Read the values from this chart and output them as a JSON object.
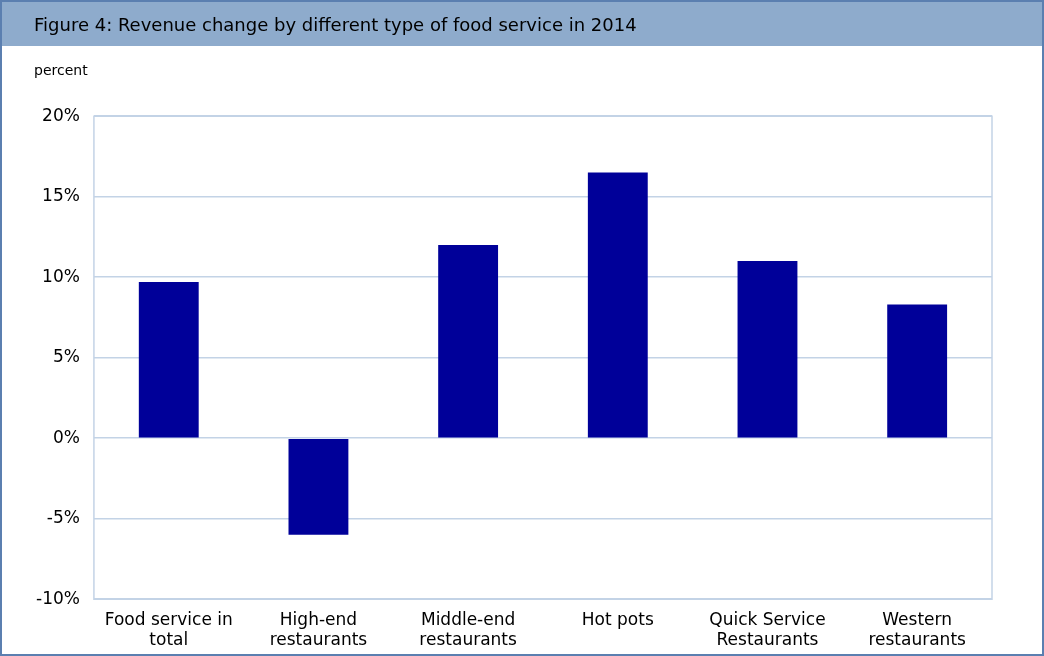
{
  "chart_data": {
    "type": "bar",
    "title": "Figure 4: Revenue change by different type of food service in 2014",
    "ylabel": "percent",
    "categories": [
      "Food service in total",
      "High-end restaurants",
      "Middle-end restaurants",
      "Hot pots",
      "Quick Service Restaurants",
      "Western restaurants"
    ],
    "values": [
      9.7,
      -6.0,
      12.0,
      16.5,
      11.0,
      8.3
    ],
    "color": "#000099",
    "ylim": [
      -10,
      20
    ],
    "yticks": [
      {
        "value": -10,
        "label": "-10%"
      },
      {
        "value": -5,
        "label": "-5%"
      },
      {
        "value": 0,
        "label": "0%"
      },
      {
        "value": 5,
        "label": "5%"
      },
      {
        "value": 10,
        "label": "10%"
      },
      {
        "value": 15,
        "label": "15%"
      },
      {
        "value": 20,
        "label": "20%"
      }
    ],
    "grid": "y",
    "legend": false
  }
}
